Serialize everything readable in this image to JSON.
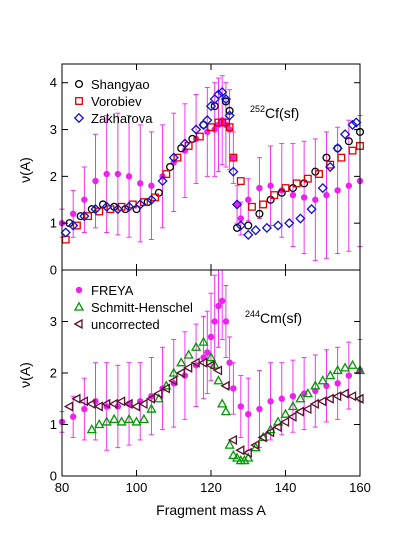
{
  "chart_data": [
    {
      "type": "scatter",
      "panel": "top",
      "ylabel": "ν(A)",
      "xlim": [
        80,
        160
      ],
      "ylim": [
        0,
        4.4
      ],
      "yticks": [
        0,
        1,
        2,
        3,
        4
      ],
      "annotation": {
        "sup": "252",
        "text": "Cf(sf)"
      },
      "legend": [
        {
          "name": "Shangyao",
          "marker": "circle",
          "color": "#000000"
        },
        {
          "name": "Vorobiev",
          "marker": "square",
          "color": "#e00000"
        },
        {
          "name": "Zakharova",
          "marker": "diamond",
          "color": "#1010d0"
        }
      ],
      "band": {
        "name": "FREYA",
        "color": "#ee22ee",
        "x": [
          80,
          83,
          86,
          89,
          92,
          95,
          98,
          101,
          104,
          107,
          110,
          113,
          116,
          119,
          121,
          122,
          123,
          124,
          125,
          126,
          127,
          128,
          130,
          133,
          136,
          139,
          142,
          145,
          148,
          151,
          154,
          157,
          160
        ],
        "y": [
          1.0,
          1.2,
          1.5,
          1.9,
          2.05,
          2.05,
          2.0,
          1.85,
          1.8,
          2.0,
          2.3,
          2.55,
          2.8,
          2.95,
          3.0,
          3.1,
          3.2,
          3.1,
          3.0,
          2.4,
          1.4,
          1.1,
          1.5,
          1.75,
          1.8,
          1.7,
          1.6,
          1.55,
          1.5,
          1.6,
          1.7,
          1.8,
          1.9
        ],
        "err": [
          0.3,
          0.5,
          0.7,
          1.0,
          1.25,
          1.3,
          1.3,
          1.25,
          1.15,
          1.1,
          1.05,
          1.0,
          0.95,
          0.95,
          1.0,
          1.0,
          0.95,
          0.9,
          0.85,
          0.55,
          0.4,
          0.35,
          0.45,
          0.65,
          0.85,
          1.0,
          1.1,
          1.2,
          1.3,
          1.35,
          1.35,
          1.4,
          1.4
        ]
      },
      "series": [
        {
          "name": "Shangyao",
          "x": [
            82,
            85,
            88,
            91,
            94,
            97,
            100,
            103,
            106,
            109,
            112,
            115,
            118,
            121,
            124,
            125,
            127,
            130,
            133,
            136,
            139,
            142,
            145,
            148,
            151,
            154,
            157,
            160
          ],
          "y": [
            1.0,
            1.15,
            1.3,
            1.4,
            1.35,
            1.3,
            1.3,
            1.45,
            1.65,
            2.2,
            2.6,
            2.8,
            3.1,
            3.5,
            3.6,
            3.4,
            0.9,
            0.95,
            1.2,
            1.5,
            1.65,
            1.75,
            1.85,
            2.1,
            2.4,
            2.6,
            2.75,
            2.95
          ]
        },
        {
          "name": "Vorobiev",
          "x": [
            81,
            84,
            87,
            90,
            93,
            96,
            99,
            102,
            105,
            108,
            111,
            114,
            117,
            120,
            122,
            123,
            124,
            125,
            126,
            128,
            131,
            134,
            137,
            140,
            143,
            146,
            149,
            152,
            155,
            158,
            160
          ],
          "y": [
            0.65,
            0.95,
            1.15,
            1.25,
            1.3,
            1.35,
            1.4,
            1.45,
            1.55,
            2.05,
            2.4,
            2.65,
            2.85,
            3.05,
            3.15,
            3.15,
            3.15,
            3.05,
            2.4,
            1.9,
            1.35,
            1.4,
            1.6,
            1.75,
            1.85,
            1.95,
            2.05,
            2.25,
            2.4,
            2.55,
            2.65
          ]
        },
        {
          "name": "Zakharova",
          "x": [
            81,
            83,
            86,
            89,
            92,
            95,
            98,
            101,
            104,
            107,
            110,
            113,
            116,
            118,
            119,
            120,
            121,
            122,
            123,
            124,
            125,
            126,
            127,
            128,
            130,
            132,
            135,
            138,
            141,
            144,
            147,
            150,
            152,
            154,
            156,
            158,
            159
          ],
          "y": [
            0.8,
            0.95,
            1.15,
            1.3,
            1.35,
            1.3,
            1.35,
            1.4,
            1.5,
            1.9,
            2.4,
            2.7,
            3.0,
            3.1,
            3.2,
            3.5,
            3.65,
            3.75,
            3.8,
            3.65,
            3.3,
            2.1,
            1.4,
            0.95,
            0.75,
            0.85,
            0.9,
            0.95,
            1.0,
            1.1,
            1.3,
            1.75,
            2.2,
            2.6,
            2.9,
            3.1,
            3.15
          ]
        }
      ]
    },
    {
      "type": "scatter",
      "panel": "bottom",
      "xlabel": "Fragment mass A",
      "ylabel": "ν(A)",
      "xlim": [
        80,
        160
      ],
      "ylim": [
        0,
        4.0
      ],
      "xticks": [
        80,
        100,
        120,
        140,
        160
      ],
      "yticks": [
        0,
        1,
        2,
        3
      ],
      "annotation": {
        "sup": "244",
        "text": "Cm(sf)"
      },
      "legend": [
        {
          "name": "FREYA",
          "marker": "dot",
          "color": "#ee22ee"
        },
        {
          "name": "Schmitt-Henschel",
          "marker": "triangle-up",
          "color": "#009900"
        },
        {
          "name": "uncorrected",
          "marker": "triangle-left",
          "color": "#5a1030"
        }
      ],
      "band": {
        "name": "FREYA",
        "color": "#ee22ee",
        "x": [
          80,
          83,
          86,
          89,
          92,
          95,
          98,
          101,
          104,
          107,
          110,
          113,
          116,
          118,
          119,
          120,
          121,
          122,
          123,
          124,
          125,
          126,
          128,
          130,
          133,
          136,
          139,
          142,
          145,
          148,
          151,
          154,
          157,
          160
        ],
        "y": [
          1.05,
          1.15,
          1.3,
          1.45,
          1.35,
          1.35,
          1.4,
          1.45,
          1.55,
          1.7,
          1.8,
          1.95,
          2.15,
          2.3,
          2.4,
          2.7,
          3.0,
          3.3,
          3.4,
          3.0,
          2.2,
          1.7,
          1.35,
          1.2,
          1.3,
          1.45,
          1.5,
          1.55,
          1.6,
          1.65,
          1.75,
          1.8,
          1.95,
          2.05
        ],
        "err": [
          0.2,
          0.4,
          0.6,
          0.75,
          0.85,
          0.8,
          0.8,
          0.75,
          0.75,
          0.8,
          0.85,
          0.85,
          0.8,
          0.8,
          0.8,
          0.85,
          0.9,
          0.8,
          0.75,
          0.7,
          0.5,
          0.5,
          0.6,
          0.7,
          0.75,
          0.75,
          0.7,
          0.7,
          0.7,
          0.7,
          0.7,
          0.7,
          0.65,
          0.6
        ]
      },
      "series": [
        {
          "name": "Schmitt-Henschel",
          "x": [
            88,
            90,
            92,
            94,
            96,
            98,
            100,
            102,
            104,
            106,
            108,
            110,
            112,
            114,
            116,
            118,
            120,
            121,
            122,
            123,
            124,
            125,
            126,
            127,
            128,
            129,
            130,
            132,
            134,
            136,
            138,
            140,
            142,
            144,
            146,
            148,
            150,
            152,
            154,
            156,
            158,
            160
          ],
          "y": [
            0.9,
            1.0,
            1.05,
            1.1,
            1.05,
            1.1,
            1.05,
            1.1,
            1.3,
            1.5,
            1.75,
            2.0,
            2.2,
            2.35,
            2.5,
            2.6,
            2.3,
            2.15,
            1.85,
            1.4,
            1.25,
            0.6,
            0.4,
            0.35,
            0.3,
            0.3,
            0.35,
            0.55,
            0.75,
            0.9,
            1.05,
            1.2,
            1.35,
            1.5,
            1.6,
            1.75,
            1.85,
            1.95,
            2.05,
            2.1,
            2.15,
            2.05
          ]
        },
        {
          "name": "uncorrected",
          "x": [
            82,
            84,
            86,
            88,
            90,
            92,
            94,
            96,
            98,
            100,
            102,
            104,
            106,
            108,
            110,
            112,
            114,
            116,
            118,
            120,
            122,
            124,
            126,
            128,
            130,
            132,
            134,
            136,
            138,
            140,
            142,
            144,
            146,
            148,
            150,
            152,
            154,
            156,
            158,
            160
          ],
          "y": [
            1.35,
            1.5,
            1.45,
            1.4,
            1.35,
            1.4,
            1.4,
            1.45,
            1.4,
            1.35,
            1.4,
            1.5,
            1.6,
            1.7,
            1.85,
            2.0,
            2.1,
            2.2,
            2.2,
            2.15,
            2.05,
            1.75,
            0.7,
            0.5,
            0.45,
            0.6,
            0.75,
            0.85,
            0.95,
            1.05,
            1.15,
            1.25,
            1.3,
            1.4,
            1.45,
            1.5,
            1.55,
            1.6,
            1.55,
            1.5
          ]
        }
      ]
    }
  ]
}
